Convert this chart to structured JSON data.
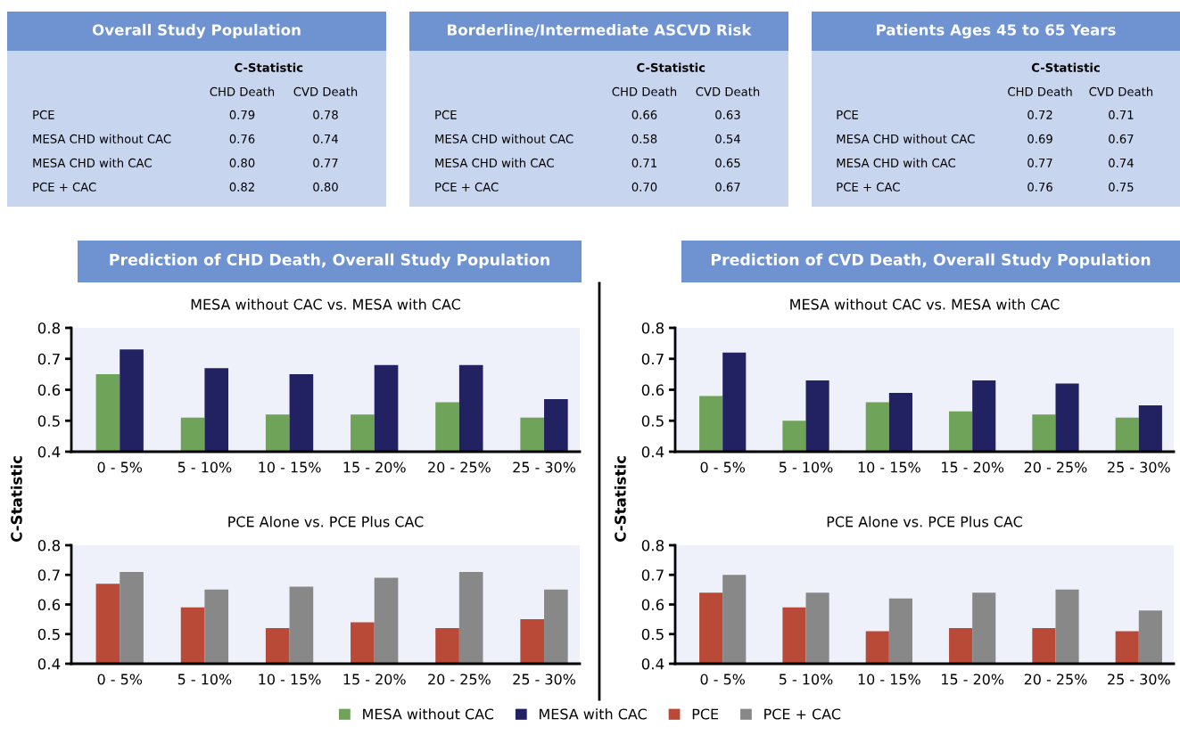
{
  "chart_data": [
    {
      "type": "other",
      "title": "Overall Study Population",
      "subtitle": "C-Statistic",
      "categories": [
        "CHD Death",
        "CVD Death"
      ],
      "y_categories": [
        "PCE",
        "MESA CHD without CAC",
        "MESA CHD with CAC",
        "PCE + CAC"
      ],
      "cell_labels": [
        [
          "0.79",
          "0.78"
        ],
        [
          "0.76",
          "0.74"
        ],
        [
          "0.80",
          "0.77"
        ],
        [
          "0.82",
          "0.80"
        ]
      ]
    },
    {
      "type": "other",
      "title": "Borderline/Intermediate ASCVD Risk",
      "subtitle": "C-Statistic",
      "categories": [
        "CHD Death",
        "CVD Death"
      ],
      "y_categories": [
        "PCE",
        "MESA CHD without CAC",
        "MESA CHD with CAC",
        "PCE + CAC"
      ],
      "cell_labels": [
        [
          "0.66",
          "0.63"
        ],
        [
          "0.58",
          "0.54"
        ],
        [
          "0.71",
          "0.65"
        ],
        [
          "0.70",
          "0.67"
        ]
      ]
    },
    {
      "type": "other",
      "title": "Patients Ages 45 to 65 Years",
      "subtitle": "C-Statistic",
      "categories": [
        "CHD Death",
        "CVD Death"
      ],
      "y_categories": [
        "PCE",
        "MESA CHD without CAC",
        "MESA CHD with CAC",
        "PCE + CAC"
      ],
      "cell_labels": [
        [
          "0.72",
          "0.71"
        ],
        [
          "0.69",
          "0.67"
        ],
        [
          "0.77",
          "0.74"
        ],
        [
          "0.76",
          "0.75"
        ]
      ]
    },
    {
      "type": "bar",
      "title": "Prediction of CHD Death, Overall Study Population",
      "subtitle": "MESA without CAC vs. MESA with CAC",
      "ylabel": "C-Statistic",
      "categories": [
        "0 - 5%",
        "5 - 10%",
        "10 - 15%",
        "15 - 20%",
        "20 - 25%",
        "25 - 30%"
      ],
      "ylim": [
        0.4,
        0.8
      ],
      "yticks": [
        0.4,
        0.5,
        0.6,
        0.7,
        0.8
      ],
      "legend": "bottom",
      "series": [
        {
          "name": "MESA without CAC",
          "color": "#70a35a",
          "values": [
            0.65,
            0.51,
            0.52,
            0.52,
            0.56,
            0.51
          ]
        },
        {
          "name": "MESA with CAC",
          "color": "#222262",
          "values": [
            0.73,
            0.67,
            0.65,
            0.68,
            0.68,
            0.57
          ]
        }
      ]
    },
    {
      "type": "bar",
      "title": "Prediction of CVD Death, Overall Study Population",
      "subtitle": "MESA without CAC vs. MESA with CAC",
      "ylabel": "C-Statistic",
      "categories": [
        "0 - 5%",
        "5 - 10%",
        "10 - 15%",
        "15 - 20%",
        "20 - 25%",
        "25 - 30%"
      ],
      "ylim": [
        0.4,
        0.8
      ],
      "yticks": [
        0.4,
        0.5,
        0.6,
        0.7,
        0.8
      ],
      "series": [
        {
          "color": "#70a35a",
          "values": [
            0.58,
            0.5,
            0.56,
            0.53,
            0.52,
            0.51
          ]
        },
        {
          "color": "#222262",
          "values": [
            0.72,
            0.63,
            0.59,
            0.63,
            0.62,
            0.55
          ]
        }
      ]
    },
    {
      "type": "bar",
      "subtitle": "PCE Alone vs. PCE Plus CAC",
      "categories": [
        "0 - 5%",
        "5 - 10%",
        "10 - 15%",
        "15 - 20%",
        "20 - 25%",
        "25 - 30%"
      ],
      "ylim": [
        0.4,
        0.8
      ],
      "yticks": [
        0.4,
        0.5,
        0.6,
        0.7,
        0.8
      ],
      "legend": "bottom",
      "series": [
        {
          "name": "PCE",
          "color": "#b94a37",
          "values": [
            0.67,
            0.59,
            0.52,
            0.54,
            0.52,
            0.55
          ]
        },
        {
          "name": "PCE + CAC",
          "color": "#888888",
          "values": [
            0.71,
            0.65,
            0.66,
            0.69,
            0.71,
            0.65
          ]
        }
      ]
    },
    {
      "type": "bar",
      "subtitle": "PCE Alone vs. PCE Plus CAC",
      "categories": [
        "0 - 5%",
        "5 - 10%",
        "10 - 15%",
        "15 - 20%",
        "20 - 25%",
        "25 - 30%"
      ],
      "ylim": [
        0.4,
        0.8
      ],
      "yticks": [
        0.4,
        0.5,
        0.6,
        0.7,
        0.8
      ],
      "series": [
        {
          "color": "#b94a37",
          "values": [
            0.64,
            0.59,
            0.51,
            0.52,
            0.52,
            0.51
          ]
        },
        {
          "color": "#888888",
          "values": [
            0.7,
            0.64,
            0.62,
            0.64,
            0.65,
            0.58
          ]
        }
      ]
    }
  ]
}
